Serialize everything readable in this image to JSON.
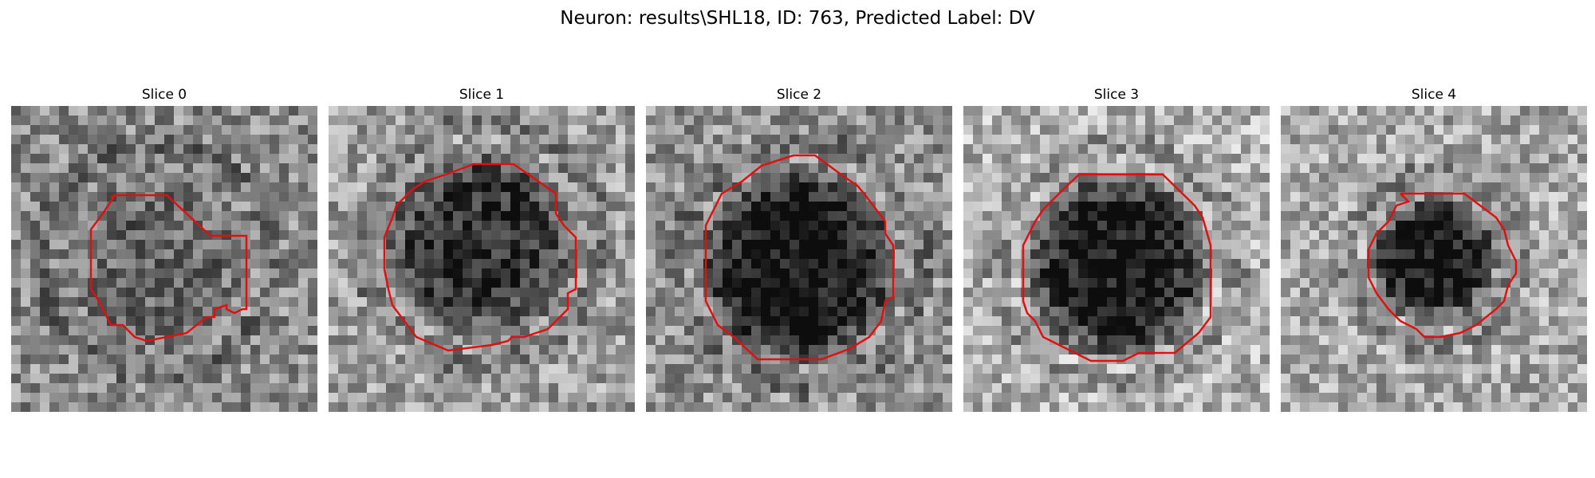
{
  "figure": {
    "title": "Neuron: results\\SHL18, ID: 763, Predicted Label: DV",
    "contour_color": "#e01010"
  },
  "panels": [
    {
      "title": "Slice 0"
    },
    {
      "title": "Slice 1"
    },
    {
      "title": "Slice 2"
    },
    {
      "title": "Slice 3"
    },
    {
      "title": "Slice 4"
    }
  ]
}
